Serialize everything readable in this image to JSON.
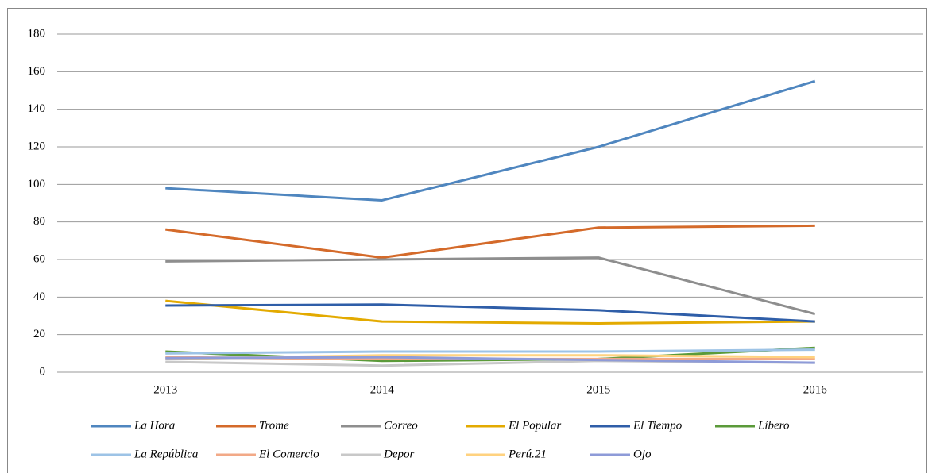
{
  "chart_data": {
    "type": "line",
    "categories": [
      "2013",
      "2014",
      "2015",
      "2016"
    ],
    "series": [
      {
        "name": "La Hora",
        "color": "#4f86bf",
        "values": [
          98,
          91.5,
          120,
          155
        ]
      },
      {
        "name": "Trome",
        "color": "#d46a2a",
        "values": [
          76,
          61,
          77,
          78
        ]
      },
      {
        "name": "Correo",
        "color": "#8e8e8e",
        "values": [
          59,
          60,
          61,
          31
        ]
      },
      {
        "name": "El Popular",
        "color": "#e3aa00",
        "values": [
          38,
          27,
          26,
          27
        ]
      },
      {
        "name": "El Tiempo",
        "color": "#2f5ea8",
        "values": [
          35.5,
          36,
          33,
          27
        ]
      },
      {
        "name": "Líbero",
        "color": "#5b9a3a",
        "values": [
          11,
          6,
          7,
          13
        ]
      },
      {
        "name": "La República",
        "color": "#9dc3e6",
        "values": [
          10,
          11,
          11,
          12
        ]
      },
      {
        "name": "El Comercio",
        "color": "#f2a987",
        "values": [
          8,
          7,
          7,
          7
        ]
      },
      {
        "name": "Depor",
        "color": "#c8c8c8",
        "values": [
          5.5,
          3.5,
          6,
          5
        ]
      },
      {
        "name": "Perú.21",
        "color": "#ffd27f",
        "values": [
          7,
          9,
          9,
          8
        ]
      },
      {
        "name": "Ojo",
        "color": "#8e9bd8",
        "values": [
          7.5,
          8,
          6.5,
          5
        ]
      }
    ],
    "ylim": [
      0,
      180
    ],
    "yticks": [
      0,
      20,
      40,
      60,
      80,
      100,
      120,
      140,
      160,
      180
    ],
    "grid": true,
    "legend": "bottom"
  }
}
